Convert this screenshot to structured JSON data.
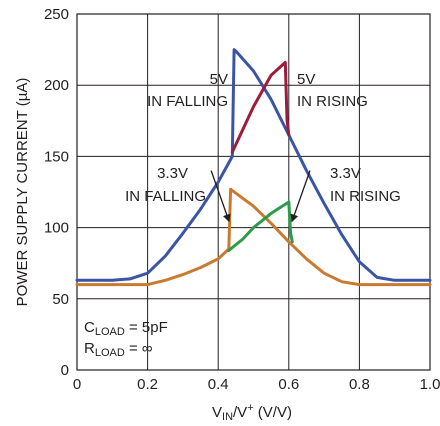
{
  "chart_data": {
    "type": "line",
    "xlabel": {
      "main": "V",
      "sub": "IN",
      "mid": "/V",
      "sup": "+",
      "tail": " (V/V)"
    },
    "ylabel": "POWER SUPPLY CURRENT (µA)",
    "xlim": [
      0,
      1.0
    ],
    "ylim": [
      0,
      250
    ],
    "xticks": [
      "0",
      "0.2",
      "0.4",
      "0.6",
      "0.8",
      "1.0"
    ],
    "xtick_values": [
      0,
      0.2,
      0.4,
      0.6,
      0.8,
      1.0
    ],
    "yticks": [
      "0",
      "50",
      "100",
      "150",
      "200",
      "250"
    ],
    "ytick_values": [
      0,
      50,
      100,
      150,
      200,
      250
    ],
    "grid": true,
    "colors": {
      "blue": "#3a55a4",
      "crimson": "#9e1b3b",
      "orange": "#c97a30",
      "green": "#2e9a4a",
      "grid": "#231f20",
      "arrow": "#231f20"
    },
    "series": [
      {
        "name": "5V IN FALLING",
        "color": "#3a55a4",
        "x": [
          0,
          0.1,
          0.15,
          0.2,
          0.25,
          0.3,
          0.35,
          0.4,
          0.44,
          0.445,
          0.45,
          0.5,
          0.55,
          0.6,
          0.65,
          0.7,
          0.75,
          0.8,
          0.85,
          0.9,
          1.0
        ],
        "y": [
          63,
          63,
          64,
          68,
          80,
          96,
          113,
          132,
          150,
          225,
          224,
          210,
          190,
          165,
          140,
          117,
          95,
          76,
          65,
          63,
          63
        ]
      },
      {
        "name": "5V IN RISING",
        "color": "#9e1b3b",
        "x": [
          0.44,
          0.5,
          0.55,
          0.59,
          0.595,
          0.6
        ],
        "y": [
          153,
          185,
          207,
          216,
          176,
          165
        ]
      },
      {
        "name": "3.3V IN FALLING",
        "color": "#c97a30",
        "x": [
          0,
          0.1,
          0.2,
          0.25,
          0.3,
          0.35,
          0.4,
          0.43,
          0.435,
          0.44,
          0.5,
          0.55,
          0.6,
          0.65,
          0.7,
          0.75,
          0.8,
          0.9,
          1.0
        ],
        "y": [
          60,
          60,
          60,
          63,
          67,
          72,
          78,
          85,
          127,
          126,
          115,
          103,
          90,
          78,
          68,
          62,
          60,
          60,
          60
        ]
      },
      {
        "name": "3.3V IN RISING",
        "color": "#2e9a4a",
        "x": [
          0.43,
          0.47,
          0.5,
          0.55,
          0.6,
          0.605,
          0.61
        ],
        "y": [
          84,
          92,
          100,
          110,
          118,
          96,
          90
        ]
      }
    ],
    "annotations": [
      {
        "id": "five_falling",
        "lines": [
          "5V",
          "IN FALLING"
        ]
      },
      {
        "id": "five_rising",
        "lines": [
          "5V",
          "IN RISING"
        ]
      },
      {
        "id": "three_falling",
        "lines": [
          "3.3V",
          "IN FALLING"
        ]
      },
      {
        "id": "three_rising",
        "lines": [
          "3.3V",
          "IN RISING"
        ]
      }
    ],
    "legend_box": {
      "cload": {
        "main": "C",
        "sub": "LOAD",
        "value": " = 5pF"
      },
      "rload": {
        "main": "R",
        "sub": "LOAD",
        "value": " = ∞"
      }
    }
  }
}
